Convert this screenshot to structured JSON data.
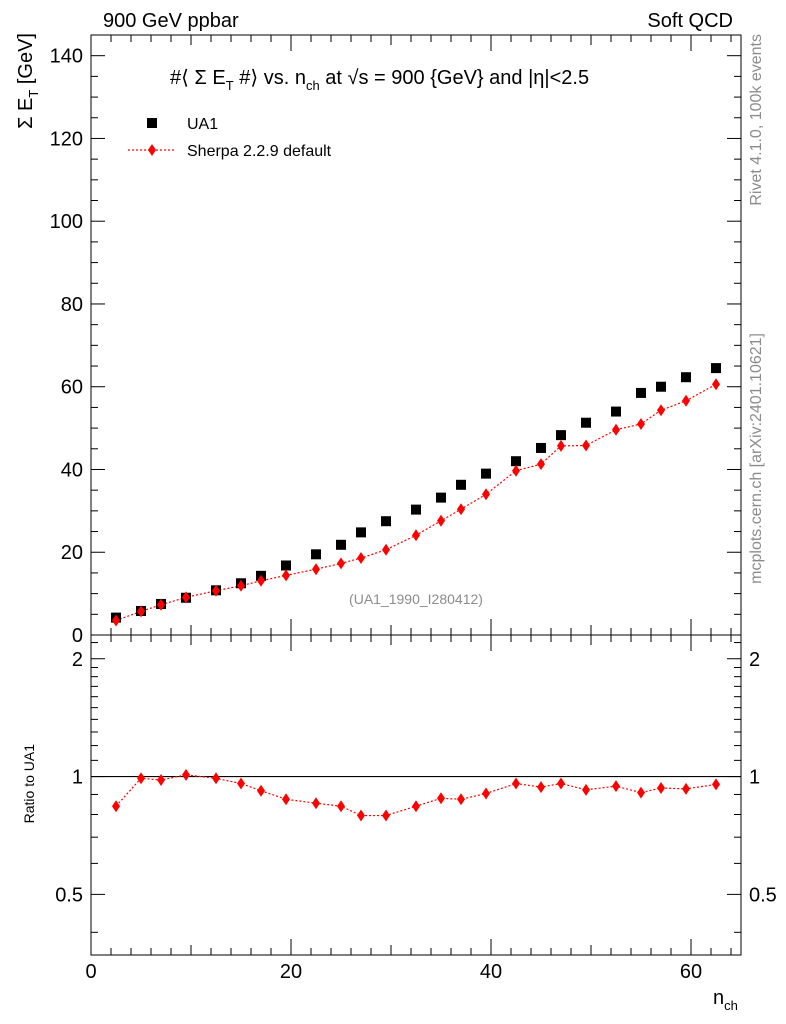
{
  "header": {
    "left": "900 GeV ppbar",
    "right": "Soft QCD"
  },
  "side": {
    "rivet": "Rivet 4.1.0,  100k events",
    "mcplots": "mcplots.cern.ch [arXiv:2401.10621]"
  },
  "chart_data": [
    {
      "type": "scatter",
      "title_parts": {
        "p1": "#⟨ Σ E",
        "p1sub": "T",
        "p2": " #⟩ vs. n",
        "p2sub": "ch",
        "p3": " at √s = 900 {GeV} and |η|<2.5"
      },
      "ylabel": {
        "main": "Σ E",
        "sub": "T",
        "unit": " [GeV]"
      },
      "xlim": [
        0,
        65
      ],
      "ylim": [
        0,
        145
      ],
      "yticks": [
        0,
        20,
        40,
        60,
        80,
        100,
        120,
        140
      ],
      "watermark": "(UA1_1990_I280412)",
      "legend": {
        "position": "top-left"
      },
      "series": [
        {
          "name": "UA1",
          "color": "#000000",
          "marker": "square",
          "x": [
            2.5,
            5,
            7,
            9.5,
            12.5,
            15,
            17,
            19.5,
            22.5,
            25,
            27,
            29.5,
            32.5,
            35,
            37,
            39.5,
            42.5,
            45,
            47,
            49.5,
            52.5,
            55,
            57,
            59.5,
            62.5
          ],
          "y": [
            4.2,
            5.8,
            7.5,
            9.0,
            10.8,
            12.5,
            14.3,
            16.8,
            19.5,
            21.8,
            24.8,
            27.5,
            30.3,
            33.2,
            36.3,
            39.0,
            42.0,
            45.2,
            48.3,
            51.3,
            54.0,
            58.5,
            60.0,
            62.3,
            64.5
          ]
        },
        {
          "name": "Sherpa 2.2.9 default",
          "color": "#ff0000",
          "marker": "diamond",
          "x": [
            2.5,
            5,
            7,
            9.5,
            12.5,
            15,
            17,
            19.5,
            22.5,
            25,
            27,
            29.5,
            32.5,
            35,
            37,
            39.5,
            42.5,
            45,
            47,
            49.5,
            52.5,
            55,
            57,
            59.5,
            62.5
          ],
          "y": [
            3.5,
            5.7,
            7.3,
            9.1,
            10.7,
            11.9,
            13.1,
            14.4,
            15.9,
            17.3,
            18.6,
            20.6,
            24.1,
            27.6,
            30.4,
            34.0,
            39.7,
            41.3,
            45.7,
            45.8,
            49.6,
            51.0,
            54.3,
            56.6,
            60.6
          ]
        }
      ]
    },
    {
      "type": "line",
      "ylabel": "Ratio to UA1",
      "xlabel": {
        "main": "n",
        "sub": "ch"
      },
      "xlim": [
        0,
        65
      ],
      "ylim": [
        0.35,
        2.3
      ],
      "yscale": "log",
      "yticks": [
        0.5,
        1,
        2
      ],
      "ytick_labels": [
        "0.5",
        "1",
        "2"
      ],
      "xticks": [
        0,
        20,
        40,
        60
      ],
      "reference_line": 1,
      "series": [
        {
          "name": "Sherpa 2.2.9 default",
          "color": "#ff0000",
          "marker": "diamond",
          "x": [
            2.5,
            5,
            7,
            9.5,
            12.5,
            15,
            17,
            19.5,
            22.5,
            25,
            27,
            29.5,
            32.5,
            35,
            37,
            39.5,
            42.5,
            45,
            47,
            49.5,
            52.5,
            55,
            57,
            59.5,
            62.5
          ],
          "y": [
            0.84,
            0.99,
            0.98,
            1.01,
            0.99,
            0.96,
            0.92,
            0.875,
            0.855,
            0.84,
            0.795,
            0.795,
            0.84,
            0.88,
            0.875,
            0.905,
            0.96,
            0.94,
            0.96,
            0.925,
            0.945,
            0.91,
            0.935,
            0.93,
            0.955
          ]
        }
      ]
    }
  ]
}
